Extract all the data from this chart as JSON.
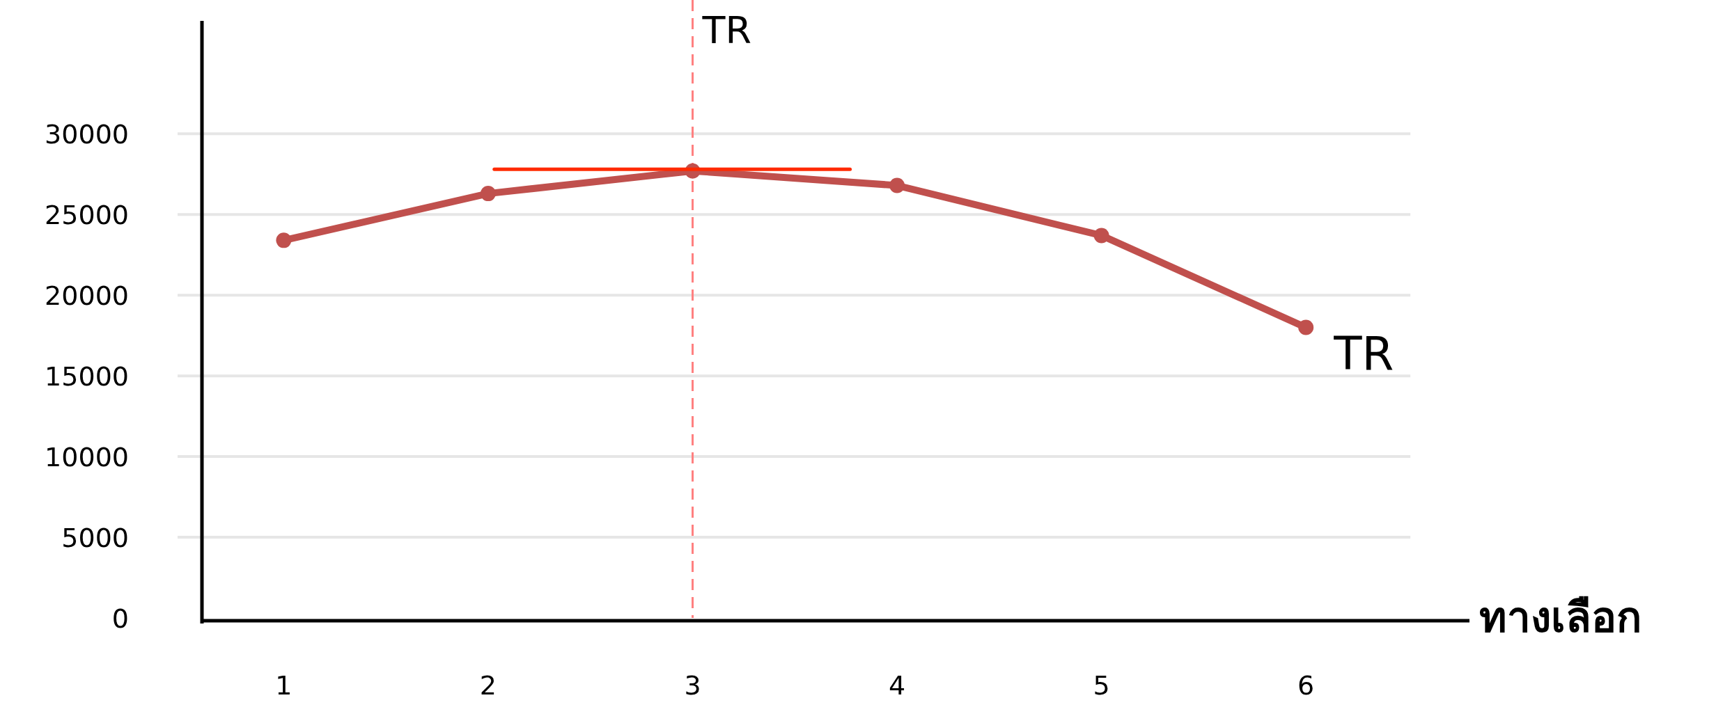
{
  "chart_data": {
    "type": "line",
    "xlabel": "ทางเลือก",
    "x": [
      1,
      2,
      3,
      4,
      5,
      6
    ],
    "series": [
      {
        "name": "TR",
        "color": "#c0504d",
        "values": [
          23400,
          26300,
          27700,
          26800,
          23700,
          18000
        ]
      },
      {
        "color": "#ff2a00",
        "marker": "none",
        "x": [
          2.03,
          3.77
        ],
        "values": [
          27800,
          27800
        ]
      }
    ],
    "marker": "circle",
    "xlim": [
      0.6,
      6.8
    ],
    "ylim": [
      0,
      37000
    ],
    "xticks": [
      1,
      2,
      3,
      4,
      5,
      6
    ],
    "yticks": [
      0,
      5000,
      10000,
      15000,
      20000,
      25000,
      30000
    ],
    "grid": "y",
    "ref_lines": [
      {
        "axis": "x",
        "value": 3,
        "label": "TR",
        "color": "#ff8080",
        "line_style": "dashed"
      }
    ]
  }
}
